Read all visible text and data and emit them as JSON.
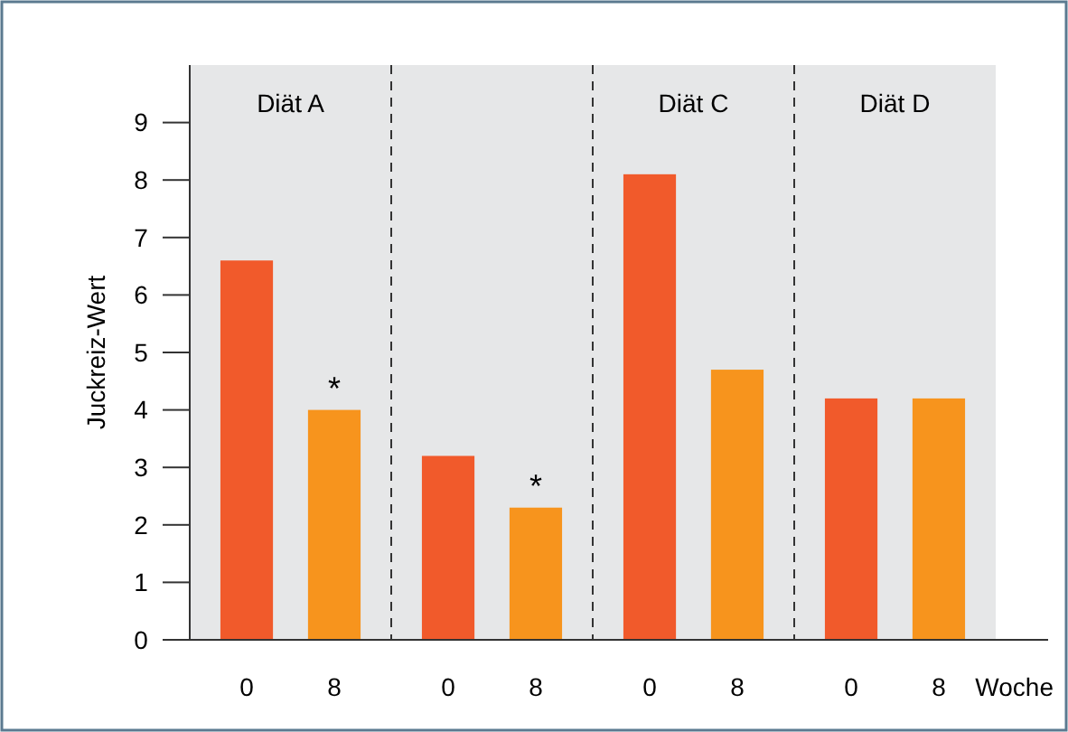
{
  "chart_data": {
    "type": "bar",
    "categories": [
      "Diät A",
      null,
      "Diät C",
      "Diät D"
    ],
    "series": [
      {
        "name": "0",
        "color": "#f15a2b",
        "values": [
          6.6,
          3.2,
          8.1,
          4.2
        ]
      },
      {
        "name": "8",
        "color": "#f7941d",
        "values": [
          4.0,
          2.3,
          4.7,
          4.2
        ],
        "value_labels": [
          "*",
          "*",
          null,
          null
        ]
      }
    ],
    "ylabel": "Juckreiz-Wert",
    "xlabel": "Woche",
    "ylim": [
      0,
      10
    ],
    "yticks": [
      0,
      1,
      2,
      3,
      4,
      5,
      6,
      7,
      8,
      9
    ],
    "grid": false
  }
}
